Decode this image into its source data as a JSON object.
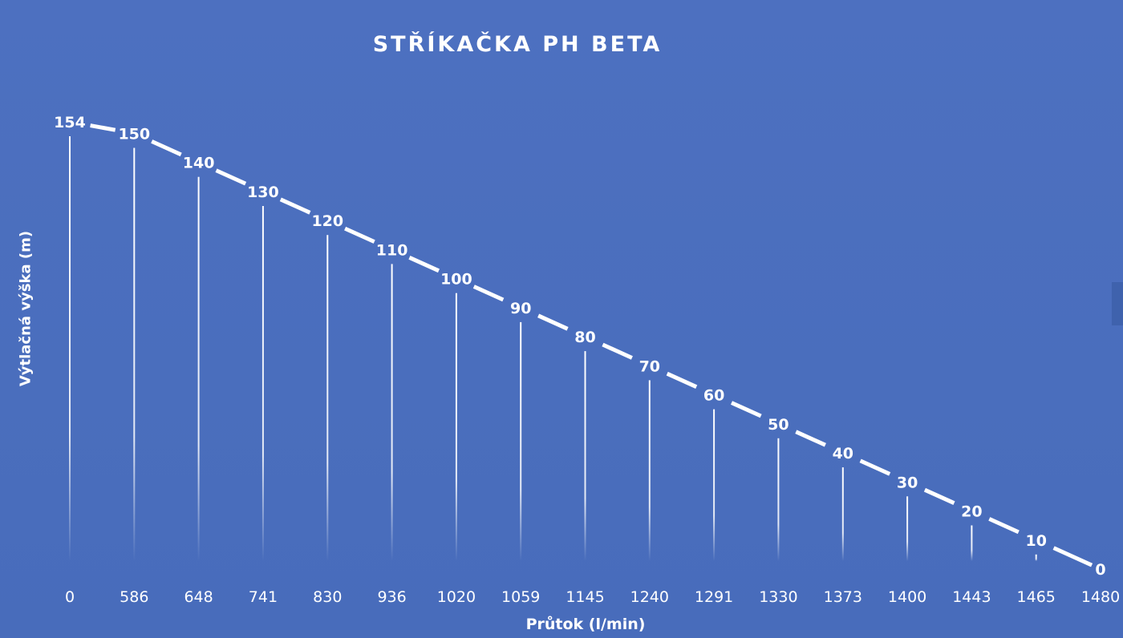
{
  "chart_data": {
    "type": "line",
    "title": "STŘÍKAČKA PH BETA",
    "xlabel": "Průtok (l/min)",
    "ylabel": "Výtlačná výška (m)",
    "categories": [
      "0",
      "586",
      "648",
      "741",
      "830",
      "936",
      "1020",
      "1059",
      "1145",
      "1240",
      "1291",
      "1330",
      "1373",
      "1400",
      "1443",
      "1465",
      "1480"
    ],
    "values": [
      154,
      150,
      140,
      130,
      120,
      110,
      100,
      90,
      80,
      70,
      60,
      50,
      40,
      30,
      20,
      10,
      0
    ],
    "ylim": [
      0,
      154
    ],
    "grid": false,
    "legend": "none",
    "line_style": "dashed",
    "colors": {
      "background": "#4a6ebd",
      "line": "#ffffff",
      "text": "#ffffff"
    }
  }
}
